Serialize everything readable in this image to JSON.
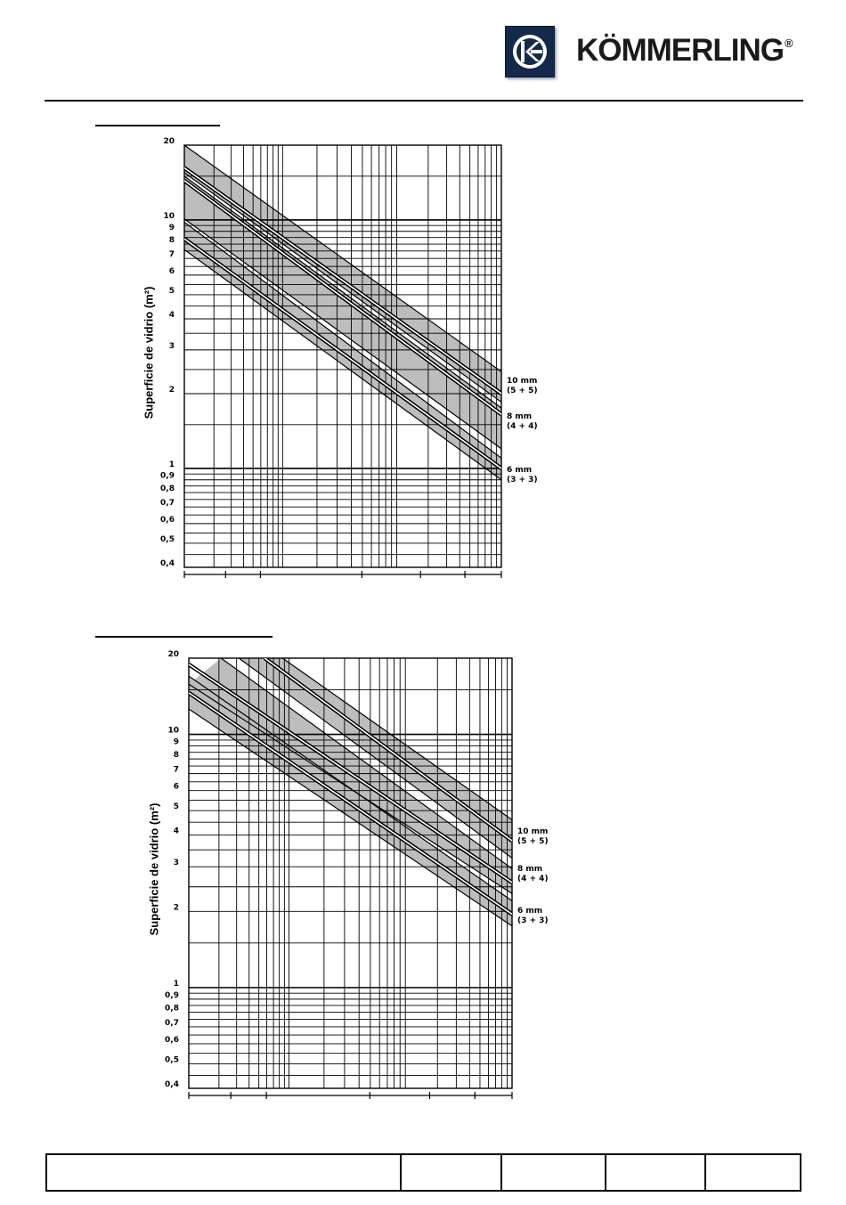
{
  "header": {
    "brand_name": "KÖMMERLING",
    "brand_mark": "®",
    "brand_color": "#15294a"
  },
  "charts_style": {
    "band_fill": "#bdbdbd",
    "grid_color": "#000000",
    "y_scale": "log"
  },
  "chart_data": [
    {
      "type": "line",
      "ylabel": "Superficie de vidrio (m²)",
      "y_scale": "log",
      "ylim": [
        0.4,
        20
      ],
      "y_ticks": [
        20,
        10,
        9,
        8,
        7,
        6,
        5,
        4,
        3,
        2,
        1,
        0.9,
        0.8,
        0.7,
        0.6,
        0.5,
        0.4
      ],
      "y_tick_labels": [
        "20",
        "10",
        "9",
        "8",
        "7",
        "6",
        "5",
        "4",
        "3",
        "2",
        "1",
        "0,9",
        "0,8",
        "0,7",
        "0,6",
        "0,5",
        "0,4"
      ],
      "xlim": [
        0,
        1
      ],
      "grid": true,
      "series": [
        {
          "name": "10 mm",
          "sub": "(5 + 5)",
          "upper": [
            [
              0,
              20
            ],
            [
              1,
              2.45
            ]
          ],
          "lower": [
            [
              0,
              15.5
            ],
            [
              1,
              1.85
            ]
          ],
          "center": [
            [
              0,
              16.2
            ],
            [
              1,
              2.0
            ]
          ]
        },
        {
          "name": "8 mm",
          "sub": "(4 + 4)",
          "upper": [
            [
              0,
              15.0
            ],
            [
              1,
              1.75
            ]
          ],
          "lower": [
            [
              0,
              10.1
            ],
            [
              1,
              1.2
            ]
          ],
          "center": [
            [
              0,
              14.4
            ],
            [
              1,
              1.65
            ]
          ]
        },
        {
          "name": "6 mm",
          "sub": "(3 + 3)",
          "upper": [
            [
              0,
              9.8
            ],
            [
              1,
              1.1
            ]
          ],
          "lower": [
            [
              0,
              7.6
            ],
            [
              1,
              0.9
            ]
          ],
          "center": [
            [
              0,
              8.4
            ],
            [
              1,
              1.0
            ]
          ]
        }
      ]
    },
    {
      "type": "line",
      "ylabel": "Superficie de vidrio (m²)",
      "y_scale": "log",
      "ylim": [
        0.4,
        20
      ],
      "y_ticks": [
        20,
        10,
        9,
        8,
        7,
        6,
        5,
        4,
        3,
        2,
        1,
        0.9,
        0.8,
        0.7,
        0.6,
        0.5,
        0.4
      ],
      "y_tick_labels": [
        "20",
        "10",
        "9",
        "8",
        "7",
        "6",
        "5",
        "4",
        "3",
        "2",
        "1",
        "0,9",
        "0,8",
        "0,7",
        "0,6",
        "0,5",
        "0,4"
      ],
      "xlim": [
        0,
        1
      ],
      "grid": true,
      "series": [
        {
          "name": "10 mm",
          "sub": "(5 + 5)",
          "upper": [
            [
              0.29,
              20
            ],
            [
              1,
              4.6
            ]
          ],
          "lower": [
            [
              0.155,
              20
            ],
            [
              1,
              3.25
            ]
          ],
          "center": [
            [
              0.235,
              20
            ],
            [
              1,
              3.8
            ]
          ]
        },
        {
          "name": "8 mm",
          "sub": "(4 + 4)",
          "upper": [
            [
              0.1,
              20
            ],
            [
              1,
              2.95
            ]
          ],
          "lower": [
            [
              0,
              15.8
            ],
            [
              1,
              2.35
            ]
          ],
          "center": [
            [
              0,
              18.9
            ],
            [
              1,
              2.6
            ]
          ]
        },
        {
          "name": "6 mm",
          "sub": "(3 + 3)",
          "upper": [
            [
              0,
              17.0
            ],
            [
              1,
              2.2
            ]
          ],
          "lower": [
            [
              0,
              12.6
            ],
            [
              1,
              1.75
            ]
          ],
          "center": [
            [
              0,
              14.6
            ],
            [
              1,
              1.95
            ]
          ]
        }
      ]
    }
  ]
}
